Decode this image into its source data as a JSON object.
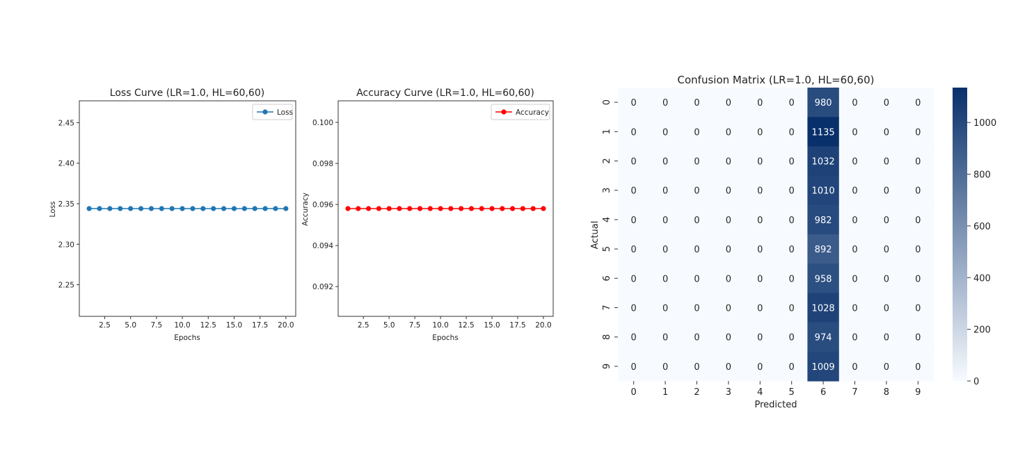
{
  "chart_data": [
    {
      "type": "line",
      "title": "Loss Curve (LR=1.0, HL=60,60)",
      "xlabel": "Epochs",
      "ylabel": "Loss",
      "x": [
        1,
        2,
        3,
        4,
        5,
        6,
        7,
        8,
        9,
        10,
        11,
        12,
        13,
        14,
        15,
        16,
        17,
        18,
        19,
        20
      ],
      "series": [
        {
          "name": "Loss",
          "values": [
            2.344,
            2.344,
            2.344,
            2.344,
            2.344,
            2.344,
            2.344,
            2.344,
            2.344,
            2.344,
            2.344,
            2.344,
            2.344,
            2.344,
            2.344,
            2.344,
            2.344,
            2.344,
            2.344,
            2.344
          ],
          "color": "#1f77b4",
          "marker": "circle"
        }
      ],
      "xlim": [
        0.05,
        20.95
      ],
      "ylim": [
        2.211,
        2.477
      ],
      "xticks": [
        2.5,
        5.0,
        7.5,
        10.0,
        12.5,
        15.0,
        17.5,
        20.0
      ],
      "xtick_labels": [
        "2.5",
        "5.0",
        "7.5",
        "10.0",
        "12.5",
        "15.0",
        "17.5",
        "20.0"
      ],
      "yticks": [
        2.25,
        2.3,
        2.35,
        2.4,
        2.45
      ],
      "ytick_labels": [
        "2.25",
        "2.30",
        "2.35",
        "2.40",
        "2.45"
      ],
      "legend": "top-right",
      "grid": false
    },
    {
      "type": "line",
      "title": "Accuracy Curve (LR=1.0, HL=60,60)",
      "xlabel": "Epochs",
      "ylabel": "Accuracy",
      "x": [
        1,
        2,
        3,
        4,
        5,
        6,
        7,
        8,
        9,
        10,
        11,
        12,
        13,
        14,
        15,
        16,
        17,
        18,
        19,
        20
      ],
      "series": [
        {
          "name": "Accuracy",
          "values": [
            0.0958,
            0.0958,
            0.0958,
            0.0958,
            0.0958,
            0.0958,
            0.0958,
            0.0958,
            0.0958,
            0.0958,
            0.0958,
            0.0958,
            0.0958,
            0.0958,
            0.0958,
            0.0958,
            0.0958,
            0.0958,
            0.0958,
            0.0958
          ],
          "color": "#ff0000",
          "marker": "circle"
        }
      ],
      "xlim": [
        0.05,
        20.95
      ],
      "ylim": [
        0.09055,
        0.10105
      ],
      "xticks": [
        2.5,
        5.0,
        7.5,
        10.0,
        12.5,
        15.0,
        17.5,
        20.0
      ],
      "xtick_labels": [
        "2.5",
        "5.0",
        "7.5",
        "10.0",
        "12.5",
        "15.0",
        "17.5",
        "20.0"
      ],
      "yticks": [
        0.092,
        0.094,
        0.096,
        0.098,
        0.1
      ],
      "ytick_labels": [
        "0.092",
        "0.094",
        "0.096",
        "0.098",
        "0.100"
      ],
      "legend": "top-right",
      "grid": false
    },
    {
      "type": "heatmap",
      "title": "Confusion Matrix (LR=1.0, HL=60,60)",
      "xlabel": "Predicted",
      "ylabel": "Actual",
      "x_categories": [
        "0",
        "1",
        "2",
        "3",
        "4",
        "5",
        "6",
        "7",
        "8",
        "9"
      ],
      "y_categories": [
        "0",
        "1",
        "2",
        "3",
        "4",
        "5",
        "6",
        "7",
        "8",
        "9"
      ],
      "values": [
        [
          0,
          0,
          0,
          0,
          0,
          0,
          980,
          0,
          0,
          0
        ],
        [
          0,
          0,
          0,
          0,
          0,
          0,
          1135,
          0,
          0,
          0
        ],
        [
          0,
          0,
          0,
          0,
          0,
          0,
          1032,
          0,
          0,
          0
        ],
        [
          0,
          0,
          0,
          0,
          0,
          0,
          1010,
          0,
          0,
          0
        ],
        [
          0,
          0,
          0,
          0,
          0,
          0,
          982,
          0,
          0,
          0
        ],
        [
          0,
          0,
          0,
          0,
          0,
          0,
          892,
          0,
          0,
          0
        ],
        [
          0,
          0,
          0,
          0,
          0,
          0,
          958,
          0,
          0,
          0
        ],
        [
          0,
          0,
          0,
          0,
          0,
          0,
          1028,
          0,
          0,
          0
        ],
        [
          0,
          0,
          0,
          0,
          0,
          0,
          974,
          0,
          0,
          0
        ],
        [
          0,
          0,
          0,
          0,
          0,
          0,
          1009,
          0,
          0,
          0
        ]
      ],
      "colormap": "Blues",
      "vmin": 0,
      "vmax": 1135,
      "colorbar_ticks": [
        0,
        200,
        400,
        600,
        800,
        1000
      ],
      "colorbar_tick_labels": [
        "0",
        "200",
        "400",
        "600",
        "800",
        "1000"
      ]
    }
  ]
}
